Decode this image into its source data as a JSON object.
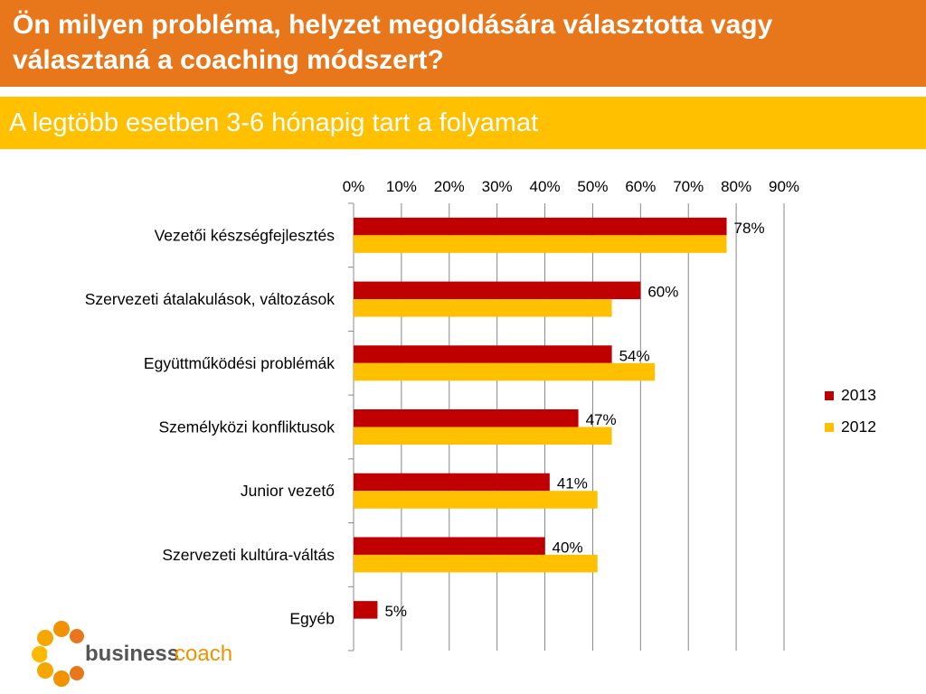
{
  "header": {
    "title": "Ön milyen probléma, helyzet megoldására választotta vagy választaná a coaching módszert?",
    "subtitle": "A legtöbb esetben 3-6 hónapig tart a folyamat"
  },
  "colors": {
    "title_bg": "#E8761A",
    "subtitle_bg": "#FFC000",
    "series_2013": "#C00000",
    "series_2012": "#FFC000"
  },
  "logo": {
    "text_bold": "business",
    "text_light": "coach",
    "icon": "orange-flower-logo-icon"
  },
  "chart_data": {
    "type": "bar",
    "orientation": "horizontal",
    "categories": [
      "Vezetői készségfejlesztés",
      "Szervezeti átalakulások, változások",
      "Együttműködési problémák",
      "Személyközi konfliktusok",
      "Junior vezető",
      "Szervezeti kultúra-váltás",
      "Egyéb"
    ],
    "series": [
      {
        "name": "2013",
        "values": [
          78,
          60,
          54,
          47,
          41,
          40,
          5
        ],
        "labels": [
          "78%",
          "60%",
          "54%",
          "47%",
          "41%",
          "40%",
          "5%"
        ],
        "color": "#C00000"
      },
      {
        "name": "2012",
        "values": [
          78,
          54,
          63,
          54,
          51,
          51,
          null
        ],
        "color": "#FFC000"
      }
    ],
    "xlim": [
      0,
      90
    ],
    "xticks": [
      "0%",
      "10%",
      "20%",
      "30%",
      "40%",
      "50%",
      "60%",
      "70%",
      "80%",
      "90%"
    ],
    "x_axis_position": "top",
    "grid": true,
    "legend_position": "right"
  }
}
